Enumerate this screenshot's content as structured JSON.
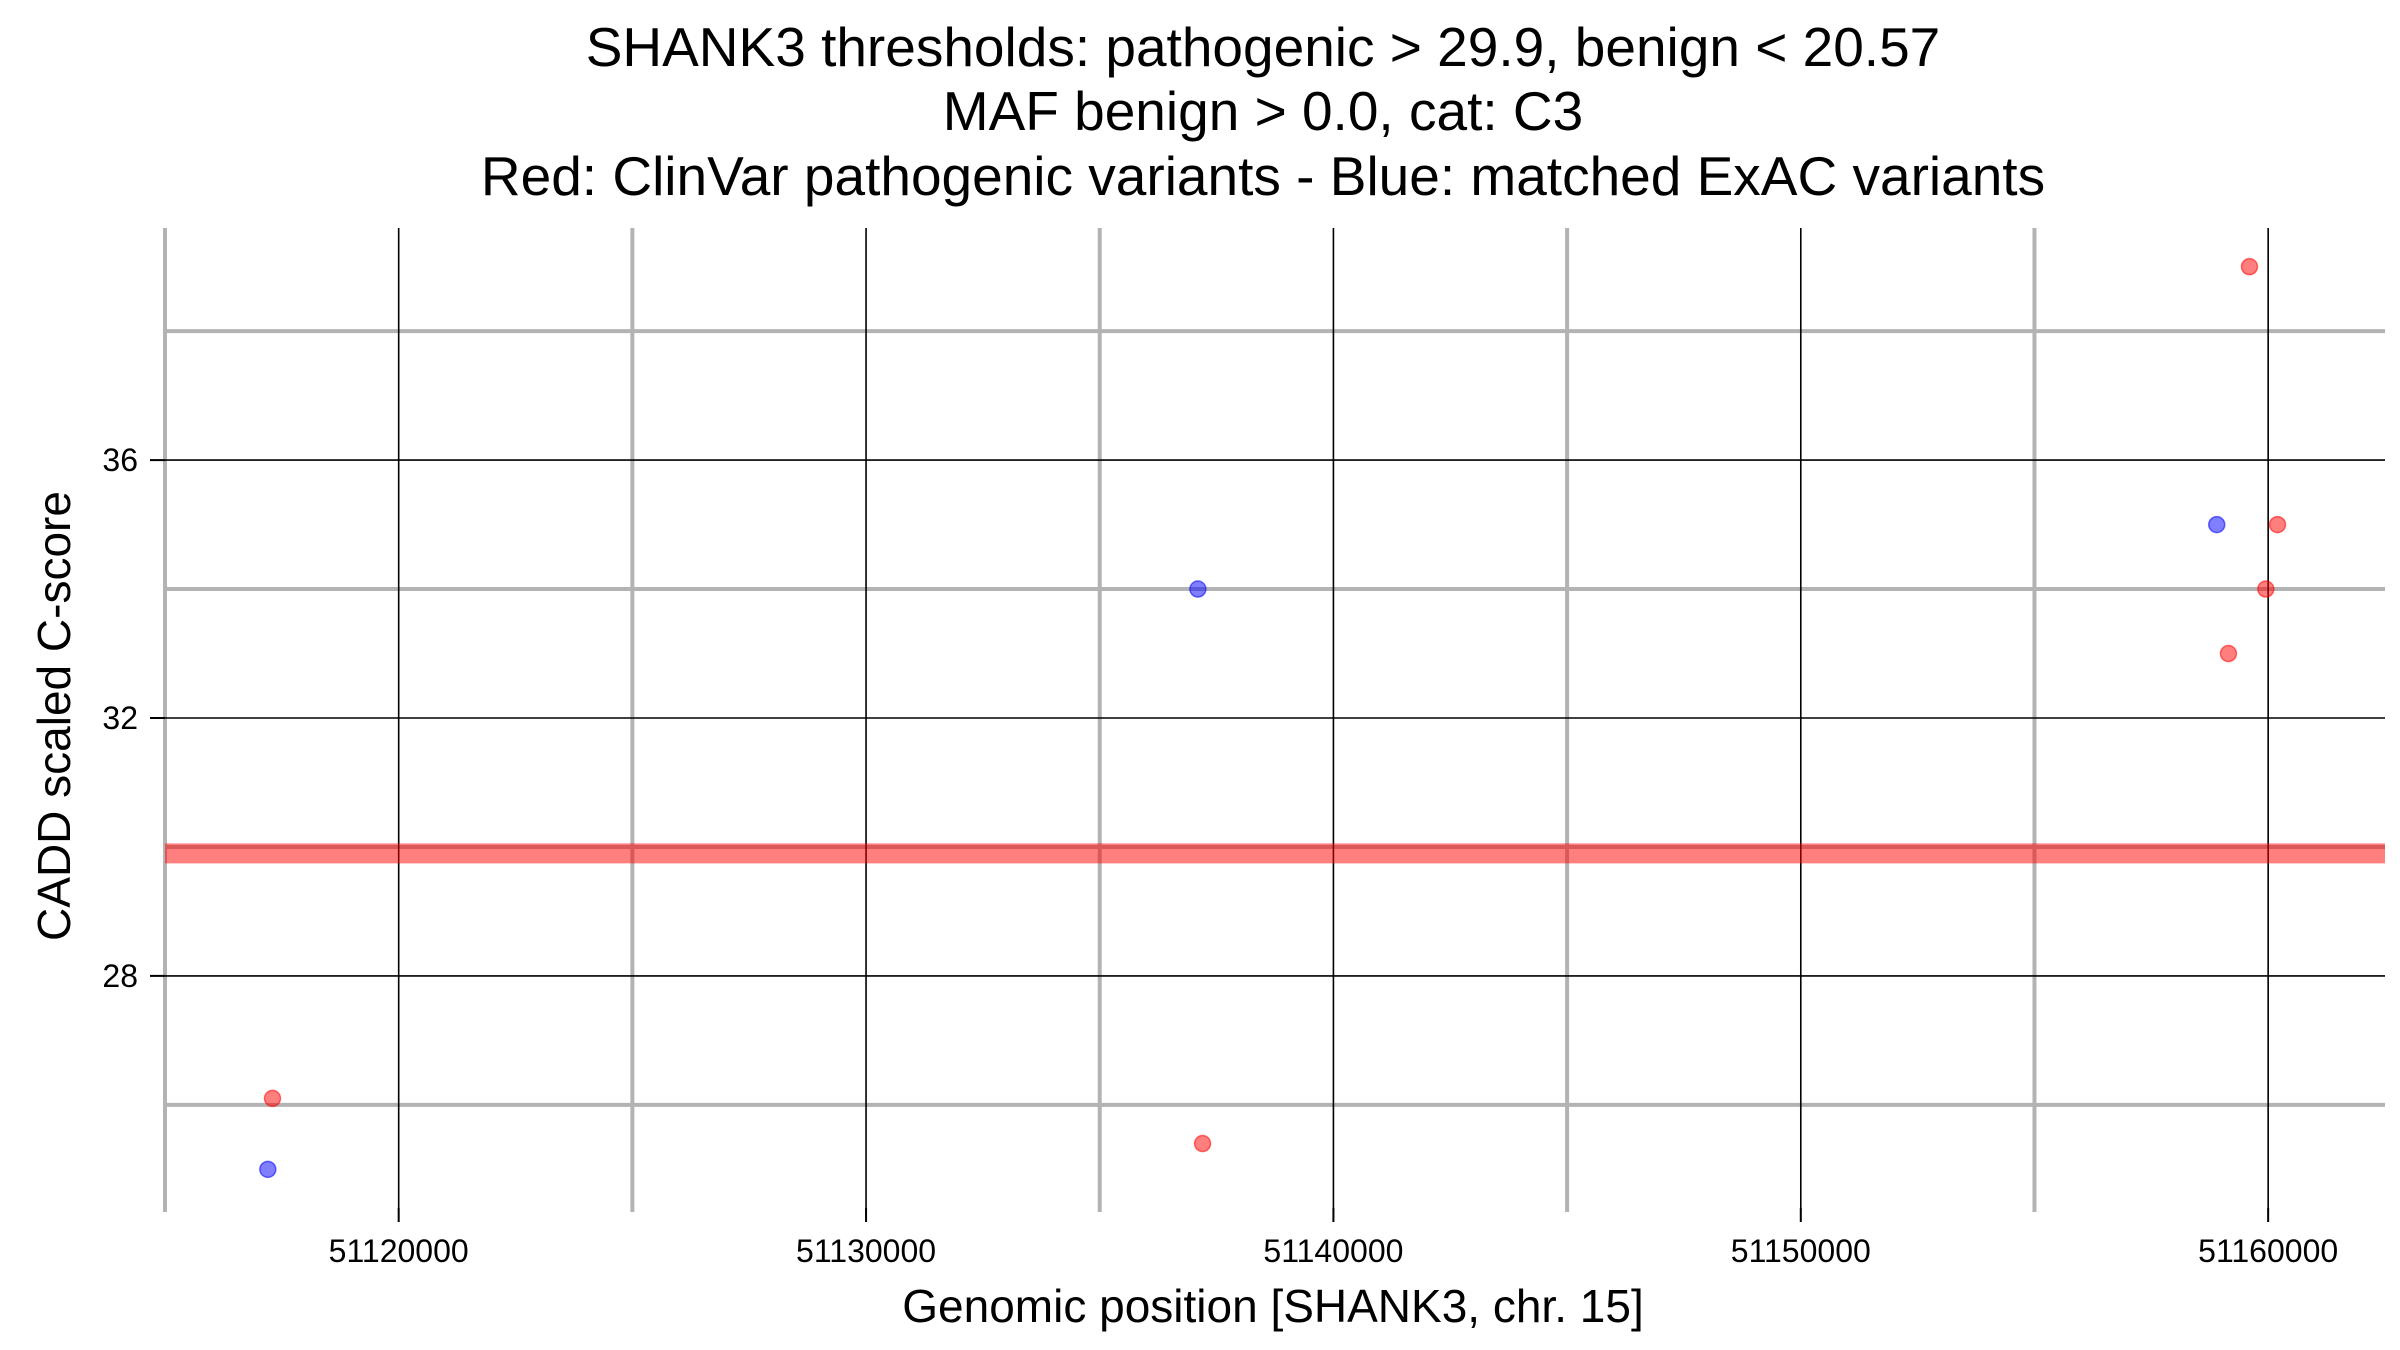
{
  "chart_data": {
    "type": "scatter",
    "title_lines": [
      "SHANK3 thresholds: pathogenic > 29.9, benign < 20.57",
      "MAF benign > 0.0, cat: C3",
      "Red: ClinVar pathogenic variants - Blue: matched ExAC variants"
    ],
    "xlabel": "Genomic position [SHANK3, chr. 15]",
    "ylabel": "CADD scaled C-score",
    "xlim": [
      51115000,
      51162500
    ],
    "ylim": [
      24.4,
      39.6
    ],
    "x_ticks": [
      51120000,
      51130000,
      51140000,
      51150000,
      51160000
    ],
    "x_tick_labels": [
      "51120000",
      "51130000",
      "51140000",
      "51150000",
      "51160000"
    ],
    "x_minor_ticks": [
      51115000,
      51125000,
      51135000,
      51145000,
      51155000
    ],
    "y_ticks": [
      28,
      32,
      36
    ],
    "y_tick_labels": [
      "28",
      "32",
      "36"
    ],
    "y_minor_ticks": [
      26,
      30,
      34,
      38
    ],
    "grid": true,
    "threshold_line": {
      "y": 29.9,
      "color": "#ff0000"
    },
    "series": [
      {
        "color": "#ff0000",
        "points": [
          {
            "x": 51117300,
            "y": 26.1
          },
          {
            "x": 51137200,
            "y": 25.4
          },
          {
            "x": 51159150,
            "y": 33.0
          },
          {
            "x": 51159600,
            "y": 39.0
          },
          {
            "x": 51159950,
            "y": 34.0
          },
          {
            "x": 51160200,
            "y": 35.0
          }
        ]
      },
      {
        "color": "#0000ff",
        "points": [
          {
            "x": 51117200,
            "y": 25.0
          },
          {
            "x": 51137100,
            "y": 34.0
          },
          {
            "x": 51158900,
            "y": 35.0
          }
        ]
      }
    ]
  }
}
